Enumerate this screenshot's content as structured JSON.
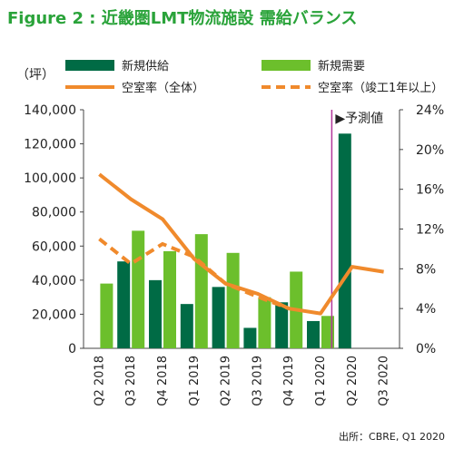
{
  "header": {
    "title": "Figure 2 : 近畿圏LMT物流施設 需給バランス"
  },
  "unit_label": "（坪）",
  "source": "出所：CBRE, Q1 2020",
  "colors": {
    "supply": "#006b45",
    "demand": "#6cbf2c",
    "vacancy_all": "#f08a2c",
    "vacancy_old": "#f08a2c",
    "forecast_line": "#b3379a",
    "title": "#2aa33a"
  },
  "chart_data": {
    "type": "bar",
    "categories": [
      "Q2 2018",
      "Q3 2018",
      "Q4 2018",
      "Q1 2019",
      "Q2 2019",
      "Q3 2019",
      "Q4 2019",
      "Q1 2020",
      "Q2 2020",
      "Q3 2020"
    ],
    "series": [
      {
        "name": "新規供給",
        "type": "bar",
        "axis": "left",
        "values": [
          null,
          51000,
          40000,
          26000,
          36000,
          12000,
          27000,
          16000,
          126000,
          null
        ]
      },
      {
        "name": "新規需要",
        "type": "bar",
        "axis": "left",
        "values": [
          38000,
          69000,
          57000,
          67000,
          56000,
          30000,
          45000,
          19000,
          null,
          null
        ]
      },
      {
        "name": "空室率（全体）",
        "type": "line",
        "axis": "right",
        "values": [
          17.5,
          15.0,
          13.0,
          9.0,
          6.5,
          5.5,
          4.0,
          3.5,
          8.2,
          7.7
        ]
      },
      {
        "name": "空室率（竣工1年以上）",
        "type": "line-dashed",
        "axis": "right",
        "values": [
          11.0,
          8.5,
          10.5,
          9.2,
          6.5,
          5.2,
          4.0,
          null,
          null,
          null
        ]
      }
    ],
    "ylim_left": [
      0,
      140000
    ],
    "yticks_left": [
      "0",
      "20,000",
      "40,000",
      "60,000",
      "80,000",
      "100,000",
      "120,000",
      "140,000"
    ],
    "ylim_right": [
      0,
      24
    ],
    "yticks_right": [
      "0%",
      "4%",
      "8%",
      "12%",
      "16%",
      "20%",
      "24%"
    ],
    "forecast_label": "▶予測値",
    "forecast_start_index": 8,
    "legend_position": "top",
    "grid": false
  }
}
